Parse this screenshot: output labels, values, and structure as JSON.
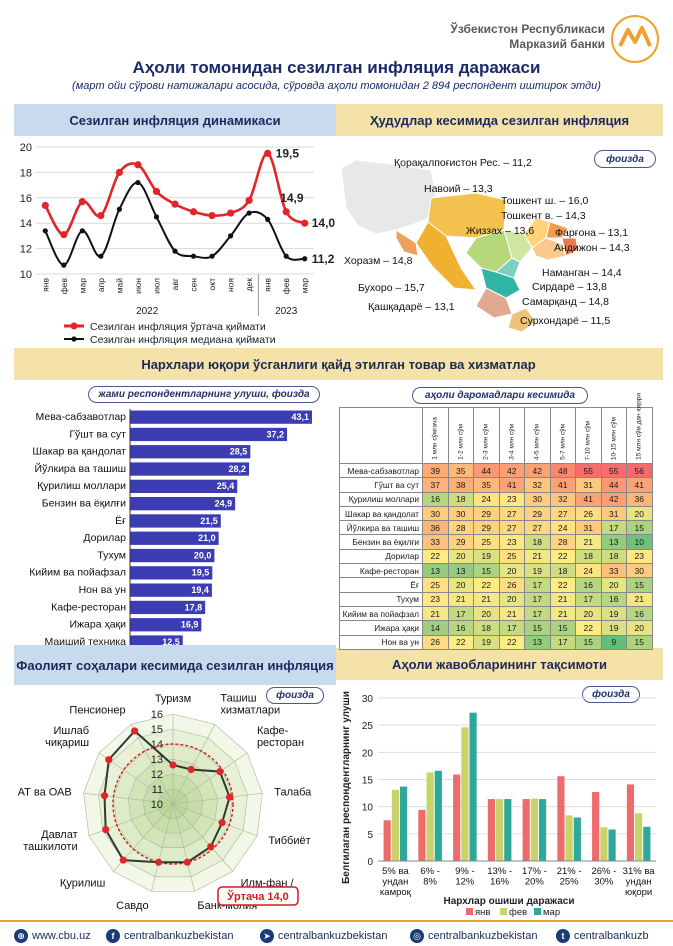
{
  "header": {
    "bank_line1": "Ўзбекистон Республикаси",
    "bank_line2": "Марказий банки",
    "title": "Аҳоли томонидан сезилган инфляция даражаси",
    "subtitle": "(март ойи сўрови натижалари асосида, сўровда аҳоли томонидан 2 894 респондент иштирок этди)"
  },
  "sections": {
    "dynamics": "Сезилган инфляция динамикаси",
    "regions": "Ҳудудлар кесимида сезилган инфляция",
    "goods": "Нархлари юқори ўсганлиги қайд этилган товар ва хизматлар",
    "sectors": "Фаолият соҳалари кесимида сезилган инфляция",
    "distribution": "Аҳоли жавобларининг тақсимоти"
  },
  "pills": {
    "percent": "фоизда",
    "share": "жами респондентларнинг улуши, фоизда",
    "income": "аҳоли даромадлари кесимида",
    "percent2": "фоизда",
    "percent3": "фоизда"
  },
  "colors": {
    "mean_line": "#e0262a",
    "median_line": "#111111",
    "bar": "#3d3db3",
    "jan": "#ee6b6b",
    "feb": "#c9d36a",
    "mar": "#2ea89b"
  },
  "chart_data": [
    {
      "type": "line",
      "x": [
        "янв",
        "фев",
        "мар",
        "апр",
        "май",
        "июн",
        "июл",
        "авг",
        "сен",
        "окт",
        "ноя",
        "дек",
        "янв",
        "фев",
        "мар"
      ],
      "year_labels": [
        "2022",
        "2023"
      ],
      "ylim": [
        10,
        20
      ],
      "yticks": [
        10,
        12,
        14,
        16,
        18,
        20
      ],
      "series": [
        {
          "name": "Сезилган инфляция ўртача қиймати",
          "values": [
            15.4,
            13.1,
            15.7,
            14.6,
            18.0,
            18.6,
            16.5,
            15.5,
            14.9,
            14.6,
            14.8,
            15.8,
            19.5,
            14.9,
            14.0
          ]
        },
        {
          "name": "Сезилган инфляция медиана қиймати",
          "values": [
            13.4,
            10.7,
            13.4,
            11.4,
            15.1,
            17.2,
            14.5,
            11.8,
            11.4,
            11.4,
            13.0,
            14.8,
            14.3,
            11.4,
            11.2
          ]
        }
      ],
      "labels": {
        "mean_peak": "19,5",
        "mean_feb": "14,9",
        "mean_last": "14,0",
        "median_last": "11,2"
      },
      "grid": true,
      "legend": "bottom"
    },
    {
      "type": "map",
      "regions": [
        {
          "name": "Қорақалпоғистон Рес.",
          "value": "11,2"
        },
        {
          "name": "Навоий",
          "value": "13,3"
        },
        {
          "name": "Тошкент ш.",
          "value": "16,0"
        },
        {
          "name": "Тошкент в.",
          "value": "14,3"
        },
        {
          "name": "Фарғона",
          "value": "13,1"
        },
        {
          "name": "Жиззах",
          "value": "13,6"
        },
        {
          "name": "Андижон",
          "value": "14,3"
        },
        {
          "name": "Хоразм",
          "value": "14,8"
        },
        {
          "name": "Наманган",
          "value": "14,4"
        },
        {
          "name": "Сирдарё",
          "value": "13,8"
        },
        {
          "name": "Бухоро",
          "value": "15,7"
        },
        {
          "name": "Самарқанд",
          "value": "14,8"
        },
        {
          "name": "Қашқадарё",
          "value": "13,1"
        },
        {
          "name": "Сурхондарё",
          "value": "11,5"
        }
      ]
    },
    {
      "type": "bar",
      "orientation": "horizontal",
      "categories": [
        "Мева-сабзавотлар",
        "Гўшт ва сут",
        "Шакар ва қандолат",
        "Йўлкира ва ташиш",
        "Қурилиш моллари",
        "Бензин ва ёқилғи",
        "Ёғ",
        "Дорилар",
        "Тухум",
        "Кийим ва пойафзал",
        "Нон ва ун",
        "Кафе-ресторан",
        "Ижара ҳақи",
        "Маиший техника"
      ],
      "values": [
        43.1,
        37.2,
        28.5,
        28.2,
        25.4,
        24.9,
        21.5,
        21.0,
        20.0,
        19.5,
        19.4,
        17.8,
        16.9,
        12.5
      ],
      "value_labels": [
        "43,1",
        "37,2",
        "28,5",
        "28,2",
        "25,4",
        "24,9",
        "21,5",
        "21,0",
        "20,0",
        "19,5",
        "19,4",
        "17,8",
        "16,9",
        "12,5"
      ]
    },
    {
      "type": "table",
      "columns": [
        "1 млн сўмгача",
        "1-2 млн сўм",
        "2-3 млн сўм",
        "3-4 млн сўм",
        "4-5 млн сўм",
        "5-7 млн сўм",
        "7-10 млн сўм",
        "10-15 млн сўм",
        "15 млн сўм дан юқори"
      ],
      "rows": [
        {
          "label": "Мева-сабзавотлар",
          "values": [
            39,
            35,
            44,
            42,
            42,
            48,
            55,
            55,
            56
          ]
        },
        {
          "label": "Гўшт ва сут",
          "values": [
            37,
            38,
            35,
            41,
            32,
            41,
            31,
            44,
            41
          ]
        },
        {
          "label": "Қурилиш моллари",
          "values": [
            16,
            18,
            24,
            23,
            30,
            32,
            41,
            42,
            36
          ]
        },
        {
          "label": "Шакар ва қандолат",
          "values": [
            30,
            30,
            29,
            27,
            29,
            27,
            26,
            31,
            20
          ]
        },
        {
          "label": "Йўлкира ва ташиш",
          "values": [
            36,
            28,
            29,
            27,
            27,
            24,
            31,
            17,
            15
          ]
        },
        {
          "label": "Бензин ва ёқилғи",
          "values": [
            33,
            29,
            25,
            23,
            18,
            28,
            21,
            13,
            10
          ]
        },
        {
          "label": "Дорилар",
          "values": [
            22,
            20,
            19,
            25,
            21,
            22,
            18,
            18,
            23
          ]
        },
        {
          "label": "Кафе-ресторан",
          "values": [
            13,
            13,
            15,
            20,
            19,
            18,
            24,
            33,
            30
          ]
        },
        {
          "label": "Ёғ",
          "values": [
            25,
            20,
            22,
            26,
            17,
            22,
            16,
            20,
            15
          ]
        },
        {
          "label": "Тухум",
          "values": [
            23,
            21,
            21,
            20,
            17,
            21,
            17,
            16,
            21
          ]
        },
        {
          "label": "Кийим ва пойафзал",
          "values": [
            21,
            17,
            20,
            21,
            17,
            21,
            20,
            19,
            16
          ]
        },
        {
          "label": "Ижара ҳақи",
          "values": [
            14,
            16,
            18,
            17,
            15,
            15,
            22,
            19,
            20
          ]
        },
        {
          "label": "Нон ва ун",
          "values": [
            26,
            22,
            19,
            22,
            13,
            17,
            15,
            9,
            15
          ]
        }
      ]
    },
    {
      "type": "radar",
      "categories": [
        "Туризм",
        "Ташиш хизматлари",
        "Кафе-ресторан",
        "Талаба",
        "Тиббиёт",
        "Илм-фан / таълим",
        "Банк-молия",
        "Савдо",
        "Қурилиш",
        "Давлат ташкилоти",
        "АТ ва ОАВ",
        "Ишлаб чиқариш",
        "Пенсионер"
      ],
      "category_lines": [
        [
          "Туризм"
        ],
        [
          "Ташиш",
          "хизматлари"
        ],
        [
          "Кафе-",
          "ресторан"
        ],
        [
          "Талаба"
        ],
        [
          "Тиббиёт"
        ],
        [
          "Илм-фан /",
          "таълим"
        ],
        [
          "Банк-молия"
        ],
        [
          "Савдо"
        ],
        [
          "Қурилиш"
        ],
        [
          "Давлат",
          "ташкилоти"
        ],
        [
          "АТ ва ОАВ"
        ],
        [
          "Ишлаб",
          "чиқариш"
        ],
        [
          "Пенсионер"
        ]
      ],
      "values": [
        12.6,
        12.6,
        13.8,
        13.8,
        13.5,
        13.8,
        14.0,
        14.0,
        15.0,
        14.8,
        14.6,
        15.2,
        15.5
      ],
      "average": 14.0,
      "average_label": "Ўртача 14,0",
      "rlim": [
        10,
        16
      ],
      "rticks": [
        "10",
        "11",
        "12",
        "13",
        "14",
        "15",
        "16"
      ]
    },
    {
      "type": "bar",
      "categories": [
        "5% ва ундан камроқ",
        "6% - 8%",
        "9% - 12%",
        "13% - 16%",
        "17% - 20%",
        "21% - 25%",
        "26% - 30%",
        "31% ва ундан юқори"
      ],
      "category_lines": [
        [
          "5% ва",
          "ундан",
          "камроқ"
        ],
        [
          "6% -",
          "8%"
        ],
        [
          "9% -",
          "12%"
        ],
        [
          "13% -",
          "16%"
        ],
        [
          "17% -",
          "20%"
        ],
        [
          "21% -",
          "25%"
        ],
        [
          "26% -",
          "30%"
        ],
        [
          "31% ва",
          "ундан",
          "юқори"
        ]
      ],
      "series": [
        {
          "name": "янв",
          "values": [
            7.5,
            9.4,
            15.9,
            11.4,
            11.4,
            15.6,
            12.7,
            14.1
          ]
        },
        {
          "name": "фев",
          "values": [
            13.1,
            16.3,
            24.6,
            11.4,
            11.5,
            8.4,
            6.2,
            8.8
          ]
        },
        {
          "name": "мар",
          "values": [
            13.7,
            16.6,
            27.3,
            11.4,
            11.4,
            8.0,
            5.8,
            6.3
          ]
        }
      ],
      "ylabel": "Белгилаган респондентларнинг улуши",
      "xlabel": "Нархлар ошиши даражаси",
      "ylim": [
        0,
        30
      ],
      "yticks": [
        0,
        5,
        10,
        15,
        20,
        25,
        30
      ],
      "legend": "bottom"
    }
  ],
  "footer": {
    "site": "www.cbu.uz",
    "facebook": "centralbankuzbekistan",
    "telegram": "centralbankuzbekistan",
    "instagram": "centralbankuzbekistan",
    "twitter": "centralbankuzb"
  }
}
